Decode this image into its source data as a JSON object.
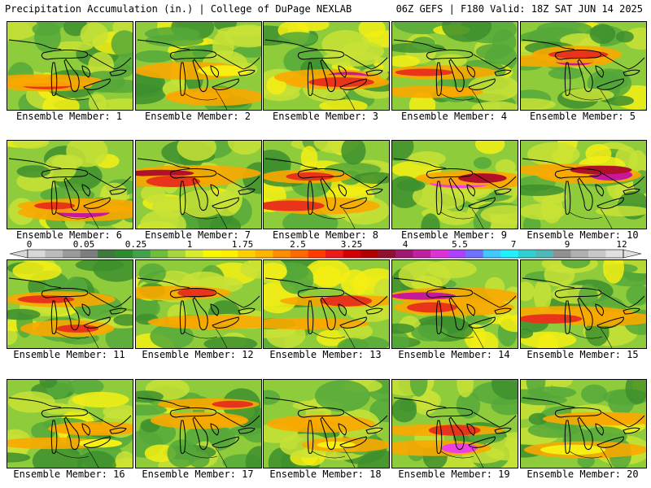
{
  "header": {
    "left": "Precipitation Accumulation (in.) | College of DuPage NEXLAB",
    "right": "06Z GEFS | F180 Valid: 18Z SAT JUN 14 2025"
  },
  "colorbar": {
    "tick_labels": [
      "0",
      "0.05",
      "0.25",
      "1",
      "1.75",
      "2.5",
      "3.25",
      "4",
      "5.5",
      "7",
      "9",
      "12"
    ],
    "colors": [
      "#d8d8d8",
      "#bcbcbc",
      "#9a9a9a",
      "#7d7d7d",
      "#3e7a3e",
      "#2e8b2e",
      "#44a04a",
      "#6fbe3a",
      "#a6d63c",
      "#d8ec2e",
      "#f8f800",
      "#fff000",
      "#ffd000",
      "#ffb400",
      "#ff8c00",
      "#ff6a00",
      "#ff3c00",
      "#ee1a1a",
      "#d20000",
      "#b00000",
      "#901030",
      "#a01870",
      "#c020a0",
      "#e030d8",
      "#b040ff",
      "#7070ff",
      "#40c8ff",
      "#20f0ff",
      "#30d0d0",
      "#50b8b8",
      "#909090",
      "#b0b0b0",
      "#c8c8c8",
      "#e0e0e0"
    ]
  },
  "palette": {
    "green_dark": "#3d8f2e",
    "green": "#55a83a",
    "green_light": "#8fcc3c",
    "yellow_green": "#c8e236",
    "yellow": "#f5ef14",
    "orange": "#f9a800",
    "red": "#e8341a",
    "dark_red": "#b0102a",
    "magenta": "#c8189a",
    "pink": "#ee40e0"
  },
  "members": [
    {
      "label": "Ensemble Member: 1"
    },
    {
      "label": "Ensemble Member: 2"
    },
    {
      "label": "Ensemble Member: 3"
    },
    {
      "label": "Ensemble Member: 4"
    },
    {
      "label": "Ensemble Member: 5"
    },
    {
      "label": "Ensemble Member: 6"
    },
    {
      "label": "Ensemble Member: 7"
    },
    {
      "label": "Ensemble Member: 8"
    },
    {
      "label": "Ensemble Member: 9"
    },
    {
      "label": "Ensemble Member: 10"
    },
    {
      "label": "Ensemble Member: 11"
    },
    {
      "label": "Ensemble Member: 12"
    },
    {
      "label": "Ensemble Member: 13"
    },
    {
      "label": "Ensemble Member: 14"
    },
    {
      "label": "Ensemble Member: 15"
    },
    {
      "label": "Ensemble Member: 16"
    },
    {
      "label": "Ensemble Member: 17"
    },
    {
      "label": "Ensemble Member: 18"
    },
    {
      "label": "Ensemble Member: 19"
    },
    {
      "label": "Ensemble Member: 20"
    }
  ]
}
